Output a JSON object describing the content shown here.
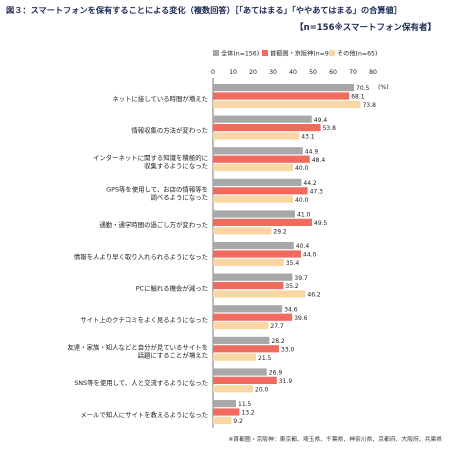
{
  "title": "図３：スマートフォンを保有することによる変化（複数回答）［「あてはまる」「ややあてはまる」の合算値］",
  "subtitle": "【n=156※スマートフォン保有者】",
  "note": "※首都圏・京阪神：東京都、埼玉県、千葉県、神奈川県、京都府、大阪府、兵庫県",
  "chart_data": {
    "type": "bar",
    "orientation": "horizontal",
    "unit": "(%)",
    "xlim": [
      0,
      80
    ],
    "ticks": [
      "0",
      "10",
      "20",
      "30",
      "40",
      "50",
      "60",
      "70",
      "80"
    ],
    "categories": [
      [
        "ネットに接している時間が増えた"
      ],
      [
        "情報収集の方法が変わった"
      ],
      [
        "インターネットに関する知識を積極的に",
        "収集するようになった"
      ],
      [
        "GPS等を使用して、お店の情報等を",
        "調べるようになった"
      ],
      [
        "通勤・通学時間の過ごし方が変わった"
      ],
      [
        "情報を人より早く取り入れられるようになった"
      ],
      [
        "PCに触れる機会が減った"
      ],
      [
        "サイト上のクチコミをよく見るようになった"
      ],
      [
        "友達・家族・知人などと自分が見ているサイトを",
        "話題にすることが増えた"
      ],
      [
        "SNS等を使用して、人と交流するようになった"
      ],
      [
        "メールで知人にサイトを教えるようになった"
      ]
    ],
    "series": [
      {
        "name": "全体(n=156)",
        "color": "#a8a8a8",
        "values": [
          70.5,
          49.4,
          44.9,
          44.2,
          41.0,
          40.4,
          39.7,
          34.6,
          28.2,
          26.9,
          11.5
        ]
      },
      {
        "name": "首都圏・京阪神(n=91)",
        "color": "#f06a5e",
        "values": [
          68.1,
          53.8,
          48.4,
          47.3,
          49.5,
          44.0,
          35.2,
          39.6,
          33.0,
          31.9,
          13.2
        ]
      },
      {
        "name": "その他(n=65)",
        "color": "#f9d7a4",
        "values": [
          73.8,
          43.1,
          40.0,
          40.0,
          29.2,
          35.4,
          46.2,
          27.7,
          21.5,
          20.0,
          9.2
        ]
      }
    ]
  }
}
